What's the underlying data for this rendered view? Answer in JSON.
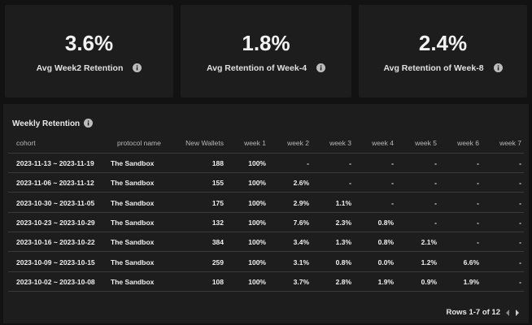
{
  "kpis": [
    {
      "value": "3.6%",
      "label": "Avg Week2 Retention"
    },
    {
      "value": "1.8%",
      "label": "Avg Retention of Week-4"
    },
    {
      "value": "2.4%",
      "label": "Avg Retention of Week-8"
    }
  ],
  "table": {
    "title": "Weekly Retention",
    "columns": [
      "cohort",
      "protocol name",
      "New Wallets",
      "week 1",
      "week 2",
      "week 3",
      "week 4",
      "week 5",
      "week 6",
      "week 7"
    ],
    "rows": [
      [
        "2023-11-13 ~ 2023-11-19",
        "The Sandbox",
        188,
        "100%",
        "-",
        "-",
        "-",
        "-",
        "-",
        "-"
      ],
      [
        "2023-11-06 ~ 2023-11-12",
        "The Sandbox",
        155,
        "100%",
        "2.6%",
        "-",
        "-",
        "-",
        "-",
        "-"
      ],
      [
        "2023-10-30 ~ 2023-11-05",
        "The Sandbox",
        175,
        "100%",
        "2.9%",
        "1.1%",
        "-",
        "-",
        "-",
        "-"
      ],
      [
        "2023-10-23 ~ 2023-10-29",
        "The Sandbox",
        132,
        "100%",
        "7.6%",
        "2.3%",
        "0.8%",
        "-",
        "-",
        "-"
      ],
      [
        "2023-10-16 ~ 2023-10-22",
        "The Sandbox",
        384,
        "100%",
        "3.4%",
        "1.3%",
        "0.8%",
        "2.1%",
        "-",
        "-"
      ],
      [
        "2023-10-09 ~ 2023-10-15",
        "The Sandbox",
        259,
        "100%",
        "3.1%",
        "0.8%",
        "0.0%",
        "1.2%",
        "6.6%",
        "-"
      ],
      [
        "2023-10-02 ~ 2023-10-08",
        "The Sandbox",
        108,
        "100%",
        "3.7%",
        "2.8%",
        "1.9%",
        "0.9%",
        "1.9%",
        "-"
      ]
    ],
    "footer": "Rows 1-7 of 12"
  }
}
